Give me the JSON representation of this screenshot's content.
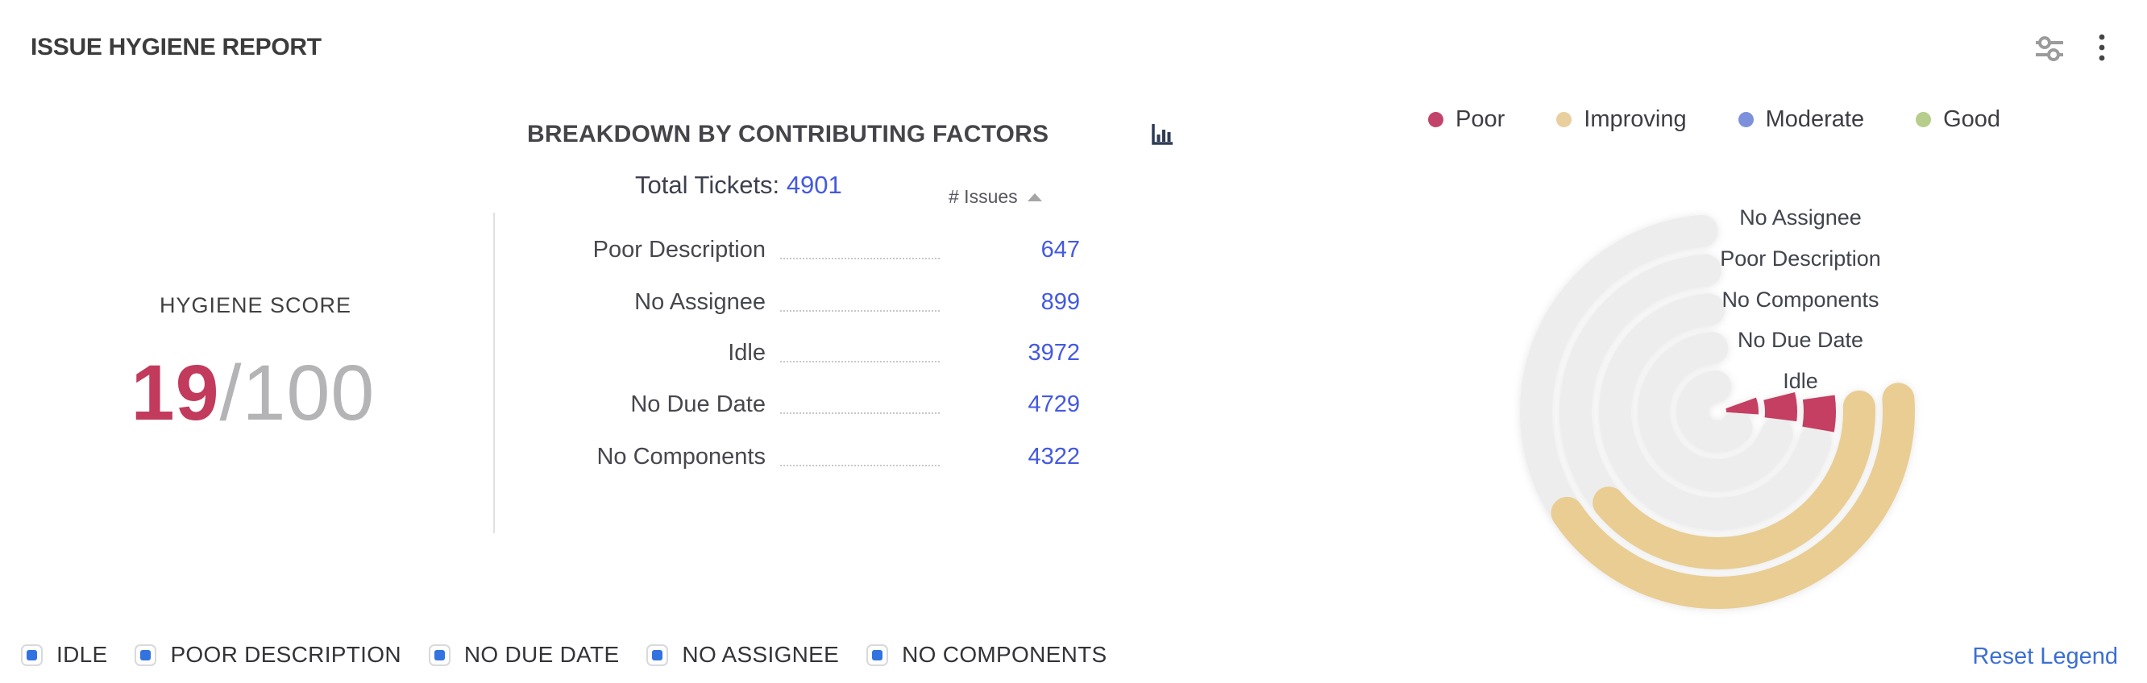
{
  "header": {
    "title": "ISSUE HYGIENE REPORT"
  },
  "hygiene": {
    "label": "HYGIENE SCORE",
    "score": "19",
    "max": "/100",
    "score_color": "#c23a5c"
  },
  "breakdown": {
    "heading": "BREAKDOWN BY CONTRIBUTING FACTORS",
    "total_label": "Total Tickets:",
    "total_value": "4901",
    "issues_header": "# Issues",
    "sort_direction": "ascending",
    "rows": [
      {
        "label": "Poor Description",
        "value": "647"
      },
      {
        "label": "No Assignee",
        "value": "899"
      },
      {
        "label": "Idle",
        "value": "3972"
      },
      {
        "label": "No Due Date",
        "value": "4729"
      },
      {
        "label": "No Components",
        "value": "4322"
      }
    ],
    "link_color": "#4459e0"
  },
  "status_legend": {
    "items": [
      {
        "label": "Poor",
        "color": "#c3446b"
      },
      {
        "label": "Improving",
        "color": "#e9cf9d"
      },
      {
        "label": "Moderate",
        "color": "#7d90dc"
      },
      {
        "label": "Good",
        "color": "#b7cd8b"
      }
    ]
  },
  "bottom_legend": {
    "items": [
      "IDLE",
      "POOR DESCRIPTION",
      "NO DUE DATE",
      "NO ASSIGNEE",
      "NO COMPONENTS"
    ],
    "checkbox_color": "#3273e0",
    "reset_label": "Reset Legend"
  },
  "chart_data": {
    "type": "radial_bar",
    "title": "BREAKDOWN BY CONTRIBUTING FACTORS",
    "total_tickets": 4901,
    "hygiene_score": 19,
    "hygiene_score_max": 100,
    "legend": [
      "Poor",
      "Improving",
      "Moderate",
      "Good"
    ],
    "legend_position": "top-right",
    "track_color": "#ededed",
    "stroke_width": 40,
    "rings": [
      {
        "label": "No Assignee",
        "issues": 899,
        "status": "Improving",
        "color": "#e9cd92",
        "radius": 225,
        "value_arc_deg": [
          -4,
          146
        ],
        "value_cap": "round",
        "track_arc_deg": [
          132,
          265
        ]
      },
      {
        "label": "Poor Description",
        "issues": 647,
        "status": "Improving",
        "color": "#e9cd92",
        "radius": 176,
        "value_arc_deg": [
          -2,
          140
        ],
        "value_cap": "round",
        "track_arc_deg": [
          128,
          265
        ]
      },
      {
        "label": "No Components",
        "issues": 4322,
        "status": "Poor",
        "color": "#c43f62",
        "radius": 127,
        "value_arc_deg": [
          -8,
          10
        ],
        "value_cap": "butt",
        "track_arc_deg": [
          17,
          265
        ]
      },
      {
        "label": "No Due Date",
        "issues": 4729,
        "status": "Poor",
        "color": "#c43f62",
        "radius": 79,
        "value_arc_deg": [
          -14,
          7
        ],
        "value_cap": "butt",
        "track_arc_deg": [
          21,
          265
        ]
      },
      {
        "label": "Idle",
        "issues": 3972,
        "status": "Poor",
        "color": "#c43f62",
        "radius": 31,
        "value_arc_deg": [
          -20,
          4
        ],
        "value_cap": "butt",
        "track_arc_deg": [
          41,
          265
        ]
      }
    ]
  }
}
